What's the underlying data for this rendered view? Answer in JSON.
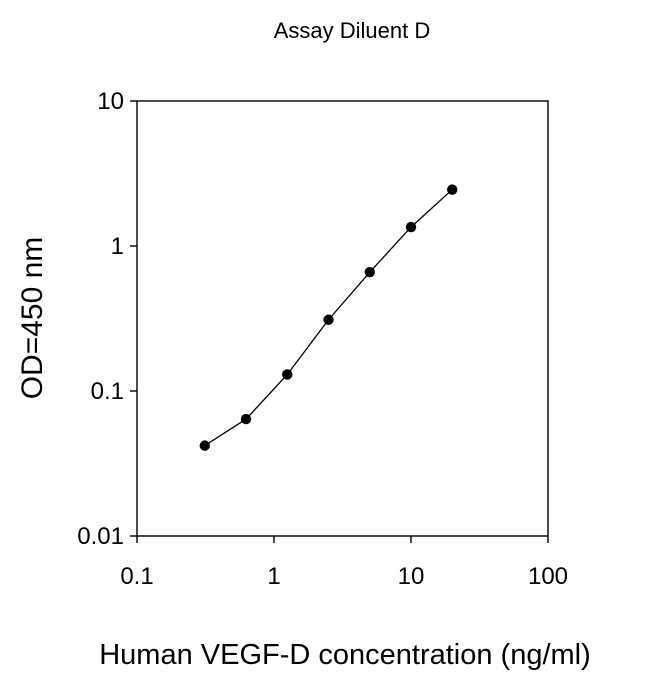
{
  "chart_data": {
    "type": "line",
    "title": "Assay Diluent D",
    "xlabel": "Human VEGF-D concentration (ng/ml)",
    "ylabel": "OD=450 nm",
    "xscale": "log",
    "yscale": "log",
    "xlim": [
      0.1,
      100
    ],
    "ylim": [
      0.01,
      10
    ],
    "xticks": [
      0.1,
      1,
      10,
      100
    ],
    "xtick_labels": [
      "0.1",
      "1",
      "10",
      "100"
    ],
    "yticks": [
      0.01,
      0.1,
      1,
      10
    ],
    "ytick_labels": [
      "0.01",
      "0.1",
      "1",
      "10"
    ],
    "grid": false,
    "legend": "none",
    "series": [
      {
        "x": [
          0.3125,
          0.625,
          1.25,
          2.5,
          5,
          10,
          20
        ],
        "y": [
          0.042,
          0.064,
          0.13,
          0.31,
          0.66,
          1.35,
          2.45
        ],
        "color": "#000000",
        "marker": "circle"
      }
    ]
  }
}
